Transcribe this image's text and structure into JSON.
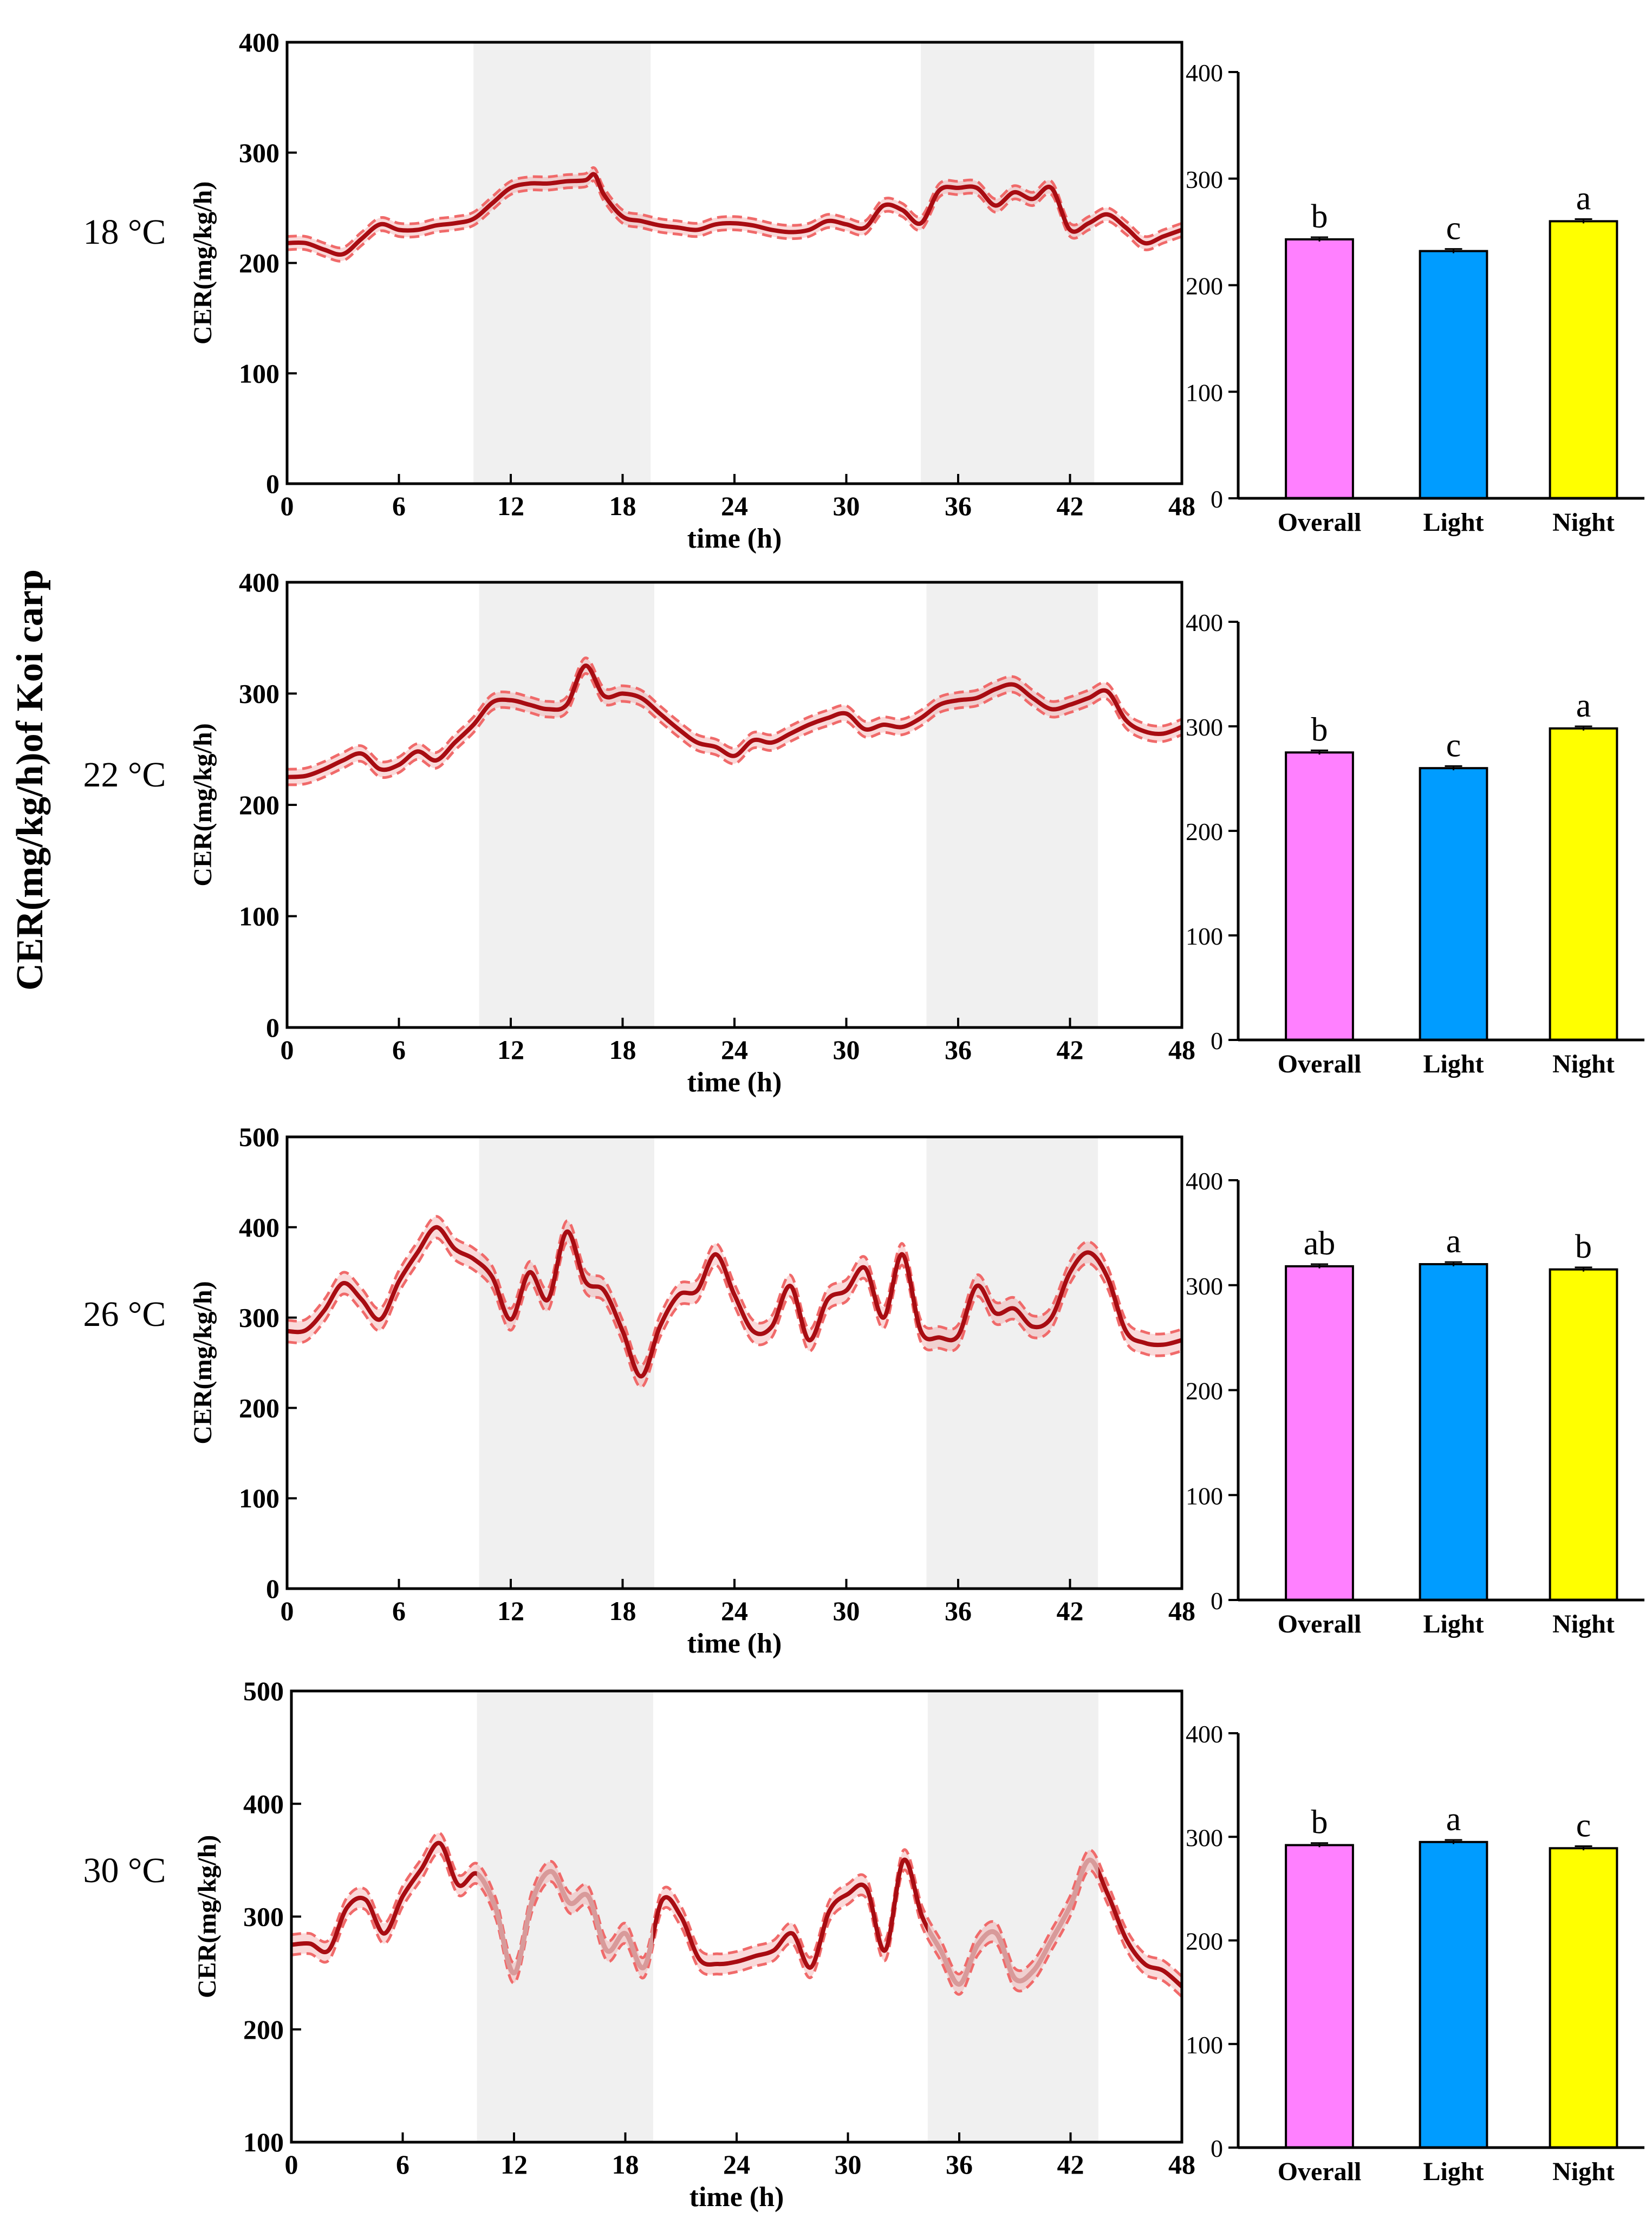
{
  "figure": {
    "y_axis_title": "CER(mg/kg/h)of Koi carp",
    "line_axis_ylabel": "CER(mg/kg/h)",
    "line_axis_xlabel": "time (h)",
    "colors": {
      "mean_line": "#a80c12",
      "ci_band": "#f29595",
      "ci_dashed": "#f06a6a",
      "faded_line": "#d89a9a",
      "dark_shade": "#f0f0f0",
      "bar_overall": "#ff80ff",
      "bar_light": "#009cff",
      "bar_night": "#ffff00",
      "axis": "#000000"
    }
  },
  "chart_data": [
    {
      "type": "line",
      "panel_label": "18 °C",
      "title": "",
      "xlabel": "time (h)",
      "ylabel": "CER(mg/kg/h)",
      "xlim": [
        0,
        48
      ],
      "ylim": [
        0,
        400
      ],
      "xticks": [
        0,
        6,
        12,
        18,
        24,
        30,
        36,
        42,
        48
      ],
      "yticks": [
        0,
        100,
        200,
        300,
        400
      ],
      "dark_periods": [
        [
          10,
          19.5
        ],
        [
          34,
          43.3
        ]
      ],
      "faded_dark_line": false,
      "x": [
        0,
        1,
        2,
        3,
        4,
        5,
        6,
        7,
        8,
        9,
        10,
        11,
        12,
        13,
        14,
        15,
        16,
        16.5,
        17,
        18,
        19,
        20,
        21,
        22,
        23,
        24,
        25,
        26,
        27,
        28,
        29,
        30,
        31,
        32,
        33,
        34,
        35,
        36,
        37,
        38,
        39,
        40,
        41,
        42,
        43,
        44,
        45,
        46,
        47,
        48
      ],
      "values": [
        218,
        218,
        212,
        208,
        222,
        235,
        230,
        230,
        234,
        236,
        240,
        254,
        268,
        272,
        272,
        274,
        275,
        280,
        262,
        242,
        238,
        234,
        232,
        230,
        235,
        236,
        234,
        230,
        228,
        230,
        238,
        235,
        232,
        252,
        248,
        236,
        266,
        268,
        268,
        252,
        264,
        258,
        268,
        230,
        236,
        244,
        232,
        218,
        224,
        230
      ],
      "band": 6
    },
    {
      "type": "bar",
      "panel_label": "18 °C",
      "categories": [
        "Overall",
        "Light",
        "Night"
      ],
      "values": [
        243,
        232,
        260
      ],
      "errors": [
        2,
        2,
        2
      ],
      "letters": [
        "b",
        "c",
        "a"
      ],
      "ylim": [
        0,
        400
      ],
      "yticks": [
        0,
        100,
        200,
        300,
        400
      ]
    },
    {
      "type": "line",
      "panel_label": "22 °C",
      "title": "",
      "xlabel": "time (h)",
      "ylabel": "CER(mg/kg/h)",
      "xlim": [
        0,
        48
      ],
      "ylim": [
        0,
        400
      ],
      "xticks": [
        0,
        6,
        12,
        18,
        24,
        30,
        36,
        42,
        48
      ],
      "yticks": [
        0,
        100,
        200,
        300,
        400
      ],
      "dark_periods": [
        [
          10.3,
          19.7
        ],
        [
          34.3,
          43.5
        ]
      ],
      "faded_dark_line": false,
      "x": [
        0,
        1,
        2,
        3,
        4,
        5,
        6,
        7,
        8,
        9,
        10,
        11,
        12,
        13,
        14,
        15,
        16,
        17,
        18,
        19,
        20,
        21,
        22,
        23,
        24,
        25,
        26,
        27,
        28,
        29,
        30,
        31,
        32,
        33,
        34,
        35,
        36,
        37,
        38,
        39,
        40,
        41,
        42,
        43,
        44,
        45,
        46,
        47,
        48
      ],
      "values": [
        225,
        226,
        232,
        240,
        246,
        232,
        236,
        248,
        240,
        256,
        272,
        292,
        294,
        290,
        286,
        290,
        325,
        298,
        300,
        296,
        282,
        268,
        256,
        252,
        244,
        258,
        256,
        264,
        272,
        278,
        282,
        268,
        272,
        270,
        278,
        290,
        294,
        296,
        304,
        308,
        296,
        286,
        290,
        296,
        302,
        276,
        266,
        264,
        270
      ],
      "band": 7
    },
    {
      "type": "bar",
      "panel_label": "22 °C",
      "categories": [
        "Overall",
        "Light",
        "Night"
      ],
      "values": [
        275,
        260,
        298
      ],
      "errors": [
        2,
        2,
        2
      ],
      "letters": [
        "b",
        "c",
        "a"
      ],
      "ylim": [
        0,
        400
      ],
      "yticks": [
        0,
        100,
        200,
        300,
        400
      ]
    },
    {
      "type": "line",
      "panel_label": "26 °C",
      "title": "",
      "xlabel": "time (h)",
      "ylabel": "CER(mg/kg/h)",
      "xlim": [
        0,
        48
      ],
      "ylim": [
        0,
        500
      ],
      "xticks": [
        0,
        6,
        12,
        18,
        24,
        30,
        36,
        42,
        48
      ],
      "yticks": [
        0,
        100,
        200,
        300,
        400,
        500
      ],
      "dark_periods": [
        [
          10.3,
          19.7
        ],
        [
          34.3,
          43.5
        ]
      ],
      "faded_dark_line": false,
      "x": [
        0,
        1,
        2,
        3,
        4,
        5,
        6,
        7,
        8,
        9,
        10,
        11,
        12,
        13,
        14,
        15,
        16,
        17,
        18,
        19,
        20,
        21,
        22,
        23,
        24,
        25,
        26,
        27,
        28,
        29,
        30,
        31,
        32,
        33,
        34,
        35,
        36,
        37,
        38,
        39,
        40,
        41,
        42,
        43,
        44,
        45,
        46,
        47,
        48
      ],
      "values": [
        285,
        286,
        308,
        338,
        320,
        298,
        340,
        372,
        400,
        376,
        365,
        345,
        298,
        350,
        320,
        395,
        340,
        330,
        285,
        235,
        290,
        325,
        330,
        370,
        325,
        285,
        290,
        335,
        275,
        320,
        330,
        355,
        300,
        370,
        285,
        278,
        280,
        335,
        305,
        310,
        290,
        300,
        350,
        372,
        345,
        285,
        272,
        270,
        275
      ],
      "band": 12
    },
    {
      "type": "bar",
      "panel_label": "26 °C",
      "categories": [
        "Overall",
        "Light",
        "Night"
      ],
      "values": [
        318,
        320,
        315
      ],
      "errors": [
        2,
        2,
        2
      ],
      "letters": [
        "ab",
        "a",
        "b"
      ],
      "ylim": [
        0,
        400
      ],
      "yticks": [
        0,
        100,
        200,
        300,
        400
      ]
    },
    {
      "type": "line",
      "panel_label": "30 °C",
      "title": "",
      "xlabel": "time (h)",
      "ylabel": "CER(mg/kg/h)",
      "xlim": [
        0,
        48
      ],
      "ylim": [
        100,
        500
      ],
      "xticks": [
        0,
        6,
        12,
        18,
        24,
        30,
        36,
        42,
        48
      ],
      "yticks": [
        100,
        200,
        300,
        400,
        500
      ],
      "dark_periods": [
        [
          10,
          19.5
        ],
        [
          34.3,
          43.5
        ]
      ],
      "faded_dark_line": true,
      "x": [
        0,
        1,
        2,
        3,
        4,
        5,
        6,
        7,
        8,
        9,
        10,
        11,
        12,
        13,
        14,
        15,
        16,
        17,
        18,
        19,
        20,
        21,
        22,
        23,
        24,
        25,
        26,
        27,
        28,
        29,
        30,
        31,
        32,
        33,
        34,
        35,
        36,
        37,
        38,
        39,
        40,
        41,
        42,
        43,
        44,
        45,
        46,
        47,
        48
      ],
      "values": [
        275,
        276,
        270,
        308,
        315,
        285,
        318,
        342,
        365,
        328,
        338,
        308,
        250,
        315,
        340,
        312,
        318,
        270,
        285,
        255,
        315,
        300,
        262,
        258,
        260,
        265,
        270,
        285,
        255,
        305,
        320,
        325,
        270,
        350,
        300,
        270,
        240,
        275,
        285,
        245,
        252,
        280,
        310,
        350,
        320,
        280,
        258,
        252,
        238
      ],
      "band": 9
    },
    {
      "type": "bar",
      "panel_label": "30 °C",
      "categories": [
        "Overall",
        "Light",
        "Night"
      ],
      "values": [
        292,
        295,
        289
      ],
      "errors": [
        2,
        2,
        2
      ],
      "letters": [
        "b",
        "a",
        "c"
      ],
      "ylim": [
        0,
        400
      ],
      "yticks": [
        0,
        100,
        200,
        300,
        400
      ]
    }
  ]
}
